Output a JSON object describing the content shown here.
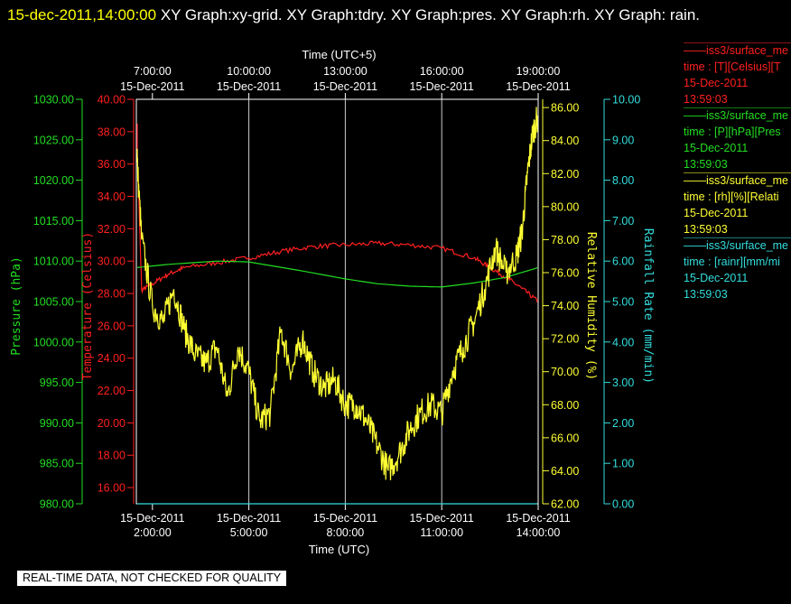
{
  "header": {
    "timestamp": "15-dec-2011,14:00:00",
    "rest": "  XY Graph:xy-grid.  XY Graph:tdry.  XY Graph:pres.  XY Graph:rh.  XY Graph: rain."
  },
  "legend": [
    {
      "name": "iss3/surface_me",
      "line2": "time : [T][Celsius][T",
      "date": "15-Dec-2011",
      "time": "13:59:03",
      "color": "#ff2020"
    },
    {
      "name": "iss3/surface_me",
      "line2": "time : [P][hPa][Pres",
      "date": "15-Dec-2011",
      "time": "13:59:03",
      "color": "#22dd22"
    },
    {
      "name": "iss3/surface_me",
      "line2": "time : [rh][%][Relati",
      "date": "15-Dec-2011",
      "time": "13:59:03",
      "color": "#ffff33"
    },
    {
      "name": "iss3/surface_me",
      "line2": "time : [rainr][mm/mi",
      "date": "15-Dec-2011",
      "time": "13:59:03",
      "color": "#33dddd"
    }
  ],
  "disclaimer": "REAL-TIME DATA, NOT CHECKED FOR QUALITY",
  "chart_data": {
    "type": "line",
    "x_bottom": {
      "label": "Time (UTC)",
      "range": [
        "15-Dec-2011 01:30",
        "15-Dec-2011 14:00"
      ],
      "ticks": [
        {
          "date": "15-Dec-2011",
          "time": "2:00:00"
        },
        {
          "date": "15-Dec-2011",
          "time": "5:00:00"
        },
        {
          "date": "15-Dec-2011",
          "time": "8:00:00"
        },
        {
          "date": "15-Dec-2011",
          "time": "11:00:00"
        },
        {
          "date": "15-Dec-2011",
          "time": "14:00:00"
        }
      ]
    },
    "x_top": {
      "label": "Time (UTC+5)",
      "ticks": [
        {
          "time": "7:00:00",
          "date": "15-Dec-2011"
        },
        {
          "time": "10:00:00",
          "date": "15-Dec-2011"
        },
        {
          "time": "13:00:00",
          "date": "15-Dec-2011"
        },
        {
          "time": "16:00:00",
          "date": "15-Dec-2011"
        },
        {
          "time": "19:00:00",
          "date": "15-Dec-2011"
        }
      ]
    },
    "grid_x": [
      "15-Dec-2011 5:00",
      "15-Dec-2011 8:00",
      "15-Dec-2011 11:00"
    ],
    "axes": [
      {
        "id": "pres",
        "label": "Pressure (hPa)",
        "color": "#22dd22",
        "side": "left-outer",
        "range": [
          980,
          1030
        ],
        "ticks": [
          "980.00",
          "985.00",
          "990.00",
          "995.00",
          "1000.00",
          "1005.00",
          "1010.00",
          "1015.00",
          "1020.00",
          "1025.00",
          "1030.00"
        ]
      },
      {
        "id": "tdry",
        "label": "Temperature (Celsius)",
        "color": "#ff2020",
        "side": "left-inner",
        "range": [
          15,
          40
        ],
        "ticks": [
          "16.00",
          "18.00",
          "20.00",
          "22.00",
          "24.00",
          "26.00",
          "28.00",
          "30.00",
          "32.00",
          "34.00",
          "36.00",
          "38.00",
          "40.00"
        ]
      },
      {
        "id": "rh",
        "label": "Relative Humidity (%)",
        "color": "#ffff33",
        "side": "right-inner",
        "range": [
          62,
          86.5
        ],
        "ticks": [
          "62.00",
          "64.00",
          "66.00",
          "68.00",
          "70.00",
          "72.00",
          "74.00",
          "76.00",
          "78.00",
          "80.00",
          "82.00",
          "84.00",
          "86.00"
        ]
      },
      {
        "id": "rain",
        "label": "Rainfall Rate (mm/min)",
        "color": "#33dddd",
        "side": "right-outer",
        "range": [
          0,
          10
        ],
        "ticks": [
          "0.00",
          "1.00",
          "2.00",
          "3.00",
          "4.00",
          "5.00",
          "6.00",
          "7.00",
          "8.00",
          "9.00",
          "10.00"
        ]
      }
    ],
    "series": [
      {
        "axis": "tdry",
        "color": "#ff2020",
        "noise": 0.15,
        "x": [
          "15-Dec-2011 01:30",
          "15-Dec-2011 01:40",
          "15-Dec-2011 02:00",
          "15-Dec-2011 02:30",
          "15-Dec-2011 03:00",
          "15-Dec-2011 04:00",
          "15-Dec-2011 05:00",
          "15-Dec-2011 06:00",
          "15-Dec-2011 07:00",
          "15-Dec-2011 08:00",
          "15-Dec-2011 09:00",
          "15-Dec-2011 10:00",
          "15-Dec-2011 11:00",
          "15-Dec-2011 12:00",
          "15-Dec-2011 12:30",
          "15-Dec-2011 13:00",
          "15-Dec-2011 13:30",
          "15-Dec-2011 14:00"
        ],
        "y": [
          38.5,
          28.2,
          28.6,
          29.2,
          29.6,
          29.9,
          30.2,
          30.6,
          30.9,
          31.0,
          31.1,
          31.0,
          30.8,
          30.2,
          29.6,
          29.0,
          28.3,
          27.5
        ]
      },
      {
        "axis": "pres",
        "color": "#22dd22",
        "noise": 0,
        "x": [
          "15-Dec-2011 01:30",
          "15-Dec-2011 02:30",
          "15-Dec-2011 04:00",
          "15-Dec-2011 05:00",
          "15-Dec-2011 06:30",
          "15-Dec-2011 08:00",
          "15-Dec-2011 09:00",
          "15-Dec-2011 10:00",
          "15-Dec-2011 11:00",
          "15-Dec-2011 12:00",
          "15-Dec-2011 13:00",
          "15-Dec-2011 13:30",
          "15-Dec-2011 14:00"
        ],
        "y": [
          1009.2,
          1009.6,
          1010.0,
          1009.9,
          1008.9,
          1007.8,
          1007.2,
          1006.9,
          1006.8,
          1007.3,
          1008.0,
          1008.6,
          1009.2
        ]
      },
      {
        "axis": "rh",
        "color": "#ffff33",
        "noise": 0.9,
        "x": [
          "15-Dec-2011 01:30",
          "15-Dec-2011 01:40",
          "15-Dec-2011 02:00",
          "15-Dec-2011 02:20",
          "15-Dec-2011 02:40",
          "15-Dec-2011 03:00",
          "15-Dec-2011 03:20",
          "15-Dec-2011 03:40",
          "15-Dec-2011 04:00",
          "15-Dec-2011 04:20",
          "15-Dec-2011 04:40",
          "15-Dec-2011 05:00",
          "15-Dec-2011 05:20",
          "15-Dec-2011 05:40",
          "15-Dec-2011 06:00",
          "15-Dec-2011 06:20",
          "15-Dec-2011 06:40",
          "15-Dec-2011 07:00",
          "15-Dec-2011 07:20",
          "15-Dec-2011 07:40",
          "15-Dec-2011 08:00",
          "15-Dec-2011 08:20",
          "15-Dec-2011 08:40",
          "15-Dec-2011 09:00",
          "15-Dec-2011 09:20",
          "15-Dec-2011 09:40",
          "15-Dec-2011 10:00",
          "15-Dec-2011 10:20",
          "15-Dec-2011 10:40",
          "15-Dec-2011 11:00",
          "15-Dec-2011 11:20",
          "15-Dec-2011 11:40",
          "15-Dec-2011 12:00",
          "15-Dec-2011 12:20",
          "15-Dec-2011 12:40",
          "15-Dec-2011 13:00",
          "15-Dec-2011 13:20",
          "15-Dec-2011 13:30",
          "15-Dec-2011 13:40",
          "15-Dec-2011 13:50",
          "15-Dec-2011 14:00"
        ],
        "y": [
          83.5,
          78.0,
          74.0,
          73.0,
          75.0,
          72.5,
          71.0,
          70.5,
          71.5,
          68.5,
          71.5,
          70.0,
          67.0,
          67.5,
          72.5,
          70.0,
          72.0,
          70.0,
          69.0,
          69.5,
          68.0,
          68.0,
          67.0,
          65.5,
          64.0,
          65.0,
          66.5,
          67.5,
          68.0,
          67.5,
          70.0,
          71.5,
          73.0,
          75.0,
          77.5,
          76.0,
          77.0,
          78.5,
          82.0,
          84.5,
          85.5
        ]
      },
      {
        "axis": "rain",
        "color": "#33dddd",
        "noise": 0,
        "x": [
          "15-Dec-2011 01:30",
          "15-Dec-2011 14:00"
        ],
        "y": [
          0,
          0
        ]
      }
    ]
  }
}
